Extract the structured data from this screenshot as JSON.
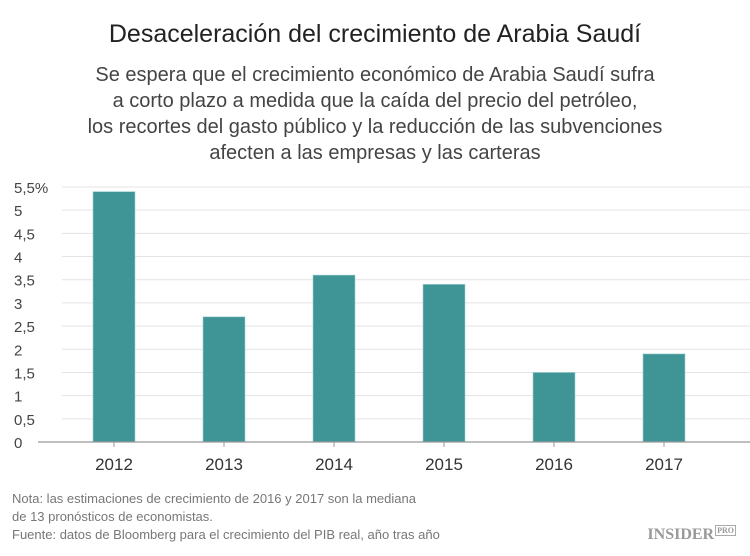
{
  "chart_data": {
    "type": "bar",
    "title": "Desaceleración del crecimiento de Arabia Saudí",
    "subtitle": [
      "Se espera que el crecimiento económico de Arabia Saudí sufra",
      "a corto plazo a medida que la caída del precio del petróleo,",
      "los recortes del gasto público y la reducción de las subvenciones",
      "afecten a las empresas y las carteras"
    ],
    "categories": [
      "2012",
      "2013",
      "2014",
      "2015",
      "2016",
      "2017"
    ],
    "values": [
      5.4,
      2.7,
      3.6,
      3.4,
      1.5,
      1.9
    ],
    "ylim": [
      0,
      5.5
    ],
    "yticks": [
      0,
      0.5,
      1,
      1.5,
      2,
      2.5,
      3,
      3.5,
      4,
      4.5,
      5,
      5.5
    ],
    "ytick_labels": [
      "0",
      "0,5",
      "1",
      "1,5",
      "2",
      "2,5",
      "3",
      "3,5",
      "4",
      "4,5",
      "5",
      "5,5%"
    ],
    "xlabel": "",
    "ylabel": "",
    "grid": true,
    "bar_color": "#3f9596"
  },
  "notes": [
    "Nota: las estimaciones de crecimiento de 2016 y 2017 son la mediana",
    "de 13 pronósticos de economistas.",
    "Fuente: datos de Bloomberg para el crecimiento del PIB real, año tras año"
  ],
  "logo": {
    "main": "INSIDER",
    "badge": "PRO"
  }
}
